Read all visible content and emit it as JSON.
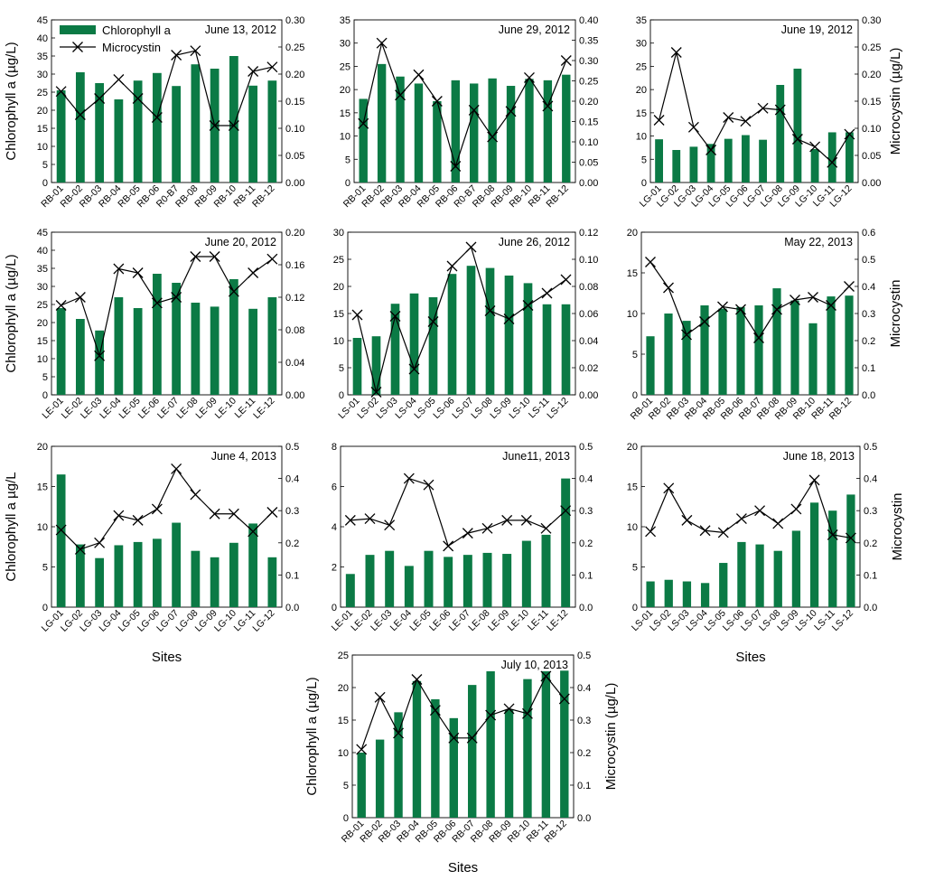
{
  "figure": {
    "legend": {
      "bar_label": "Chlorophyll a",
      "line_label": "Microcystin",
      "bar_color": "#0b7a45",
      "line_color": "#000000"
    },
    "left_ylabel_plain": "Chlorophyll a (µg/L)",
    "left_ylabel_row3": "Chlorophyll a µg/L",
    "right_ylabel": "Microcystin (µg/L)",
    "right_ylabel_short": "Microcystin",
    "xlabel": "Sites"
  },
  "chart_data": [
    {
      "type": "bar",
      "title": "June 13, 2012",
      "categories": [
        "RB-01",
        "RB-02",
        "RB-03",
        "RB-04",
        "RB-05",
        "RB-06",
        "R0-B7",
        "RB-08",
        "RB-09",
        "RB-10",
        "RB-11",
        "RB-12"
      ],
      "series": [
        {
          "name": "Chlorophyll a",
          "axis": "left",
          "values": [
            25.5,
            30.5,
            27.5,
            23,
            28.2,
            30.3,
            26.7,
            32.7,
            31.5,
            35,
            26.8,
            28.2
          ]
        },
        {
          "name": "Microcystin",
          "axis": "right",
          "type": "line",
          "values": [
            0.168,
            0.125,
            0.155,
            0.19,
            0.155,
            0.12,
            0.235,
            0.243,
            0.105,
            0.105,
            0.205,
            0.213
          ]
        }
      ],
      "ylim": [
        0,
        45
      ],
      "yticks": [
        0,
        5,
        10,
        15,
        20,
        25,
        30,
        35,
        40,
        45
      ],
      "y2lim": [
        0,
        0.3
      ],
      "y2ticks": [
        0,
        0.05,
        0.1,
        0.15,
        0.2,
        0.25,
        0.3
      ],
      "y2decimals": 2
    },
    {
      "type": "bar",
      "title": "June 29,  2012",
      "categories": [
        "RB-01",
        "RB-02",
        "RB-03",
        "RB-04",
        "RB-05",
        "RB-06",
        "R0-B7",
        "RB-08",
        "RB-09",
        "RB-10",
        "RB-11",
        "RB-12"
      ],
      "series": [
        {
          "name": "Chlorophyll a",
          "axis": "left",
          "values": [
            18,
            25.5,
            22.8,
            21.3,
            17.5,
            22,
            21.3,
            22.4,
            20.8,
            22.3,
            22,
            23.2
          ]
        },
        {
          "name": "Microcystin",
          "axis": "right",
          "type": "line",
          "values": [
            0.145,
            0.343,
            0.215,
            0.265,
            0.2,
            0.04,
            0.178,
            0.112,
            0.175,
            0.258,
            0.188,
            0.3
          ]
        }
      ],
      "ylim": [
        0,
        35
      ],
      "yticks": [
        0,
        5,
        10,
        15,
        20,
        25,
        30,
        35
      ],
      "y2lim": [
        0,
        0.4
      ],
      "y2ticks": [
        0,
        0.05,
        0.1,
        0.15,
        0.2,
        0.25,
        0.3,
        0.35,
        0.4
      ],
      "y2decimals": 2
    },
    {
      "type": "bar",
      "title": "June 19, 2012",
      "categories": [
        "LG-01",
        "LG-02",
        "LG-03",
        "LG-04",
        "LG-05",
        "LG-06",
        "LG-07",
        "LG-08",
        "LG-09",
        "LG-10",
        "LG-11",
        "LG-12"
      ],
      "series": [
        {
          "name": "Chlorophyll a",
          "axis": "left",
          "values": [
            9.3,
            7,
            7.7,
            8.3,
            9.4,
            10.2,
            9.2,
            21,
            24.5,
            7.2,
            10.8,
            10.8
          ]
        },
        {
          "name": "Microcystin",
          "axis": "right",
          "type": "line",
          "values": [
            0.115,
            0.24,
            0.102,
            0.06,
            0.12,
            0.113,
            0.137,
            0.134,
            0.08,
            0.066,
            0.037,
            0.089
          ]
        }
      ],
      "ylim": [
        0,
        35
      ],
      "yticks": [
        0,
        5,
        10,
        15,
        20,
        25,
        30,
        35
      ],
      "y2lim": [
        0,
        0.3
      ],
      "y2ticks": [
        0,
        0.05,
        0.1,
        0.15,
        0.2,
        0.25,
        0.3
      ],
      "y2decimals": 2
    },
    {
      "type": "bar",
      "title": "June 20, 2012",
      "categories": [
        "LE-01",
        "LE-02",
        "LE-03",
        "LE-04",
        "LE-05",
        "LE-06",
        "LE-07",
        "LE-08",
        "LE-09",
        "LE-10",
        "LE-11",
        "LE-12"
      ],
      "series": [
        {
          "name": "Chlorophyll a",
          "axis": "left",
          "values": [
            24,
            21,
            17.8,
            27,
            24,
            33.5,
            31,
            25.5,
            24.4,
            32,
            23.8,
            27
          ]
        },
        {
          "name": "Microcystin",
          "axis": "right",
          "type": "line",
          "values": [
            0.11,
            0.12,
            0.048,
            0.155,
            0.15,
            0.113,
            0.12,
            0.17,
            0.17,
            0.127,
            0.15,
            0.167
          ]
        }
      ],
      "ylim": [
        0,
        45
      ],
      "yticks": [
        0,
        5,
        10,
        15,
        20,
        25,
        30,
        35,
        40,
        45
      ],
      "y2lim": [
        0,
        0.2
      ],
      "y2ticks": [
        0,
        0.04,
        0.08,
        0.12,
        0.16,
        0.2
      ],
      "y2decimals": 2
    },
    {
      "type": "bar",
      "title": "June 26, 2012",
      "categories": [
        "LS-01",
        "LS-02",
        "LS-03",
        "LS-04",
        "LS-05",
        "LS-06",
        "LS-07",
        "LS-08",
        "LS-09",
        "LS-10",
        "LS-11",
        "LS-12"
      ],
      "series": [
        {
          "name": "Chlorophyll a",
          "axis": "left",
          "values": [
            10.5,
            10.8,
            16.8,
            18.7,
            18,
            22.3,
            23.8,
            23.4,
            22,
            20.6,
            16.7,
            16.7
          ]
        },
        {
          "name": "Microcystin",
          "axis": "right",
          "type": "line",
          "values": [
            0.059,
            0.002,
            0.058,
            0.019,
            0.054,
            0.095,
            0.109,
            0.062,
            0.056,
            0.066,
            0.075,
            0.085
          ]
        }
      ],
      "ylim": [
        0,
        30
      ],
      "yticks": [
        0,
        5,
        10,
        15,
        20,
        25,
        30
      ],
      "y2lim": [
        0,
        0.12
      ],
      "y2ticks": [
        0,
        0.02,
        0.04,
        0.06,
        0.08,
        0.1,
        0.12
      ],
      "y2decimals": 2
    },
    {
      "type": "bar",
      "title": "May 22, 2013",
      "categories": [
        "RB-01",
        "RB-02",
        "RB-03",
        "RB-04",
        "RB-05",
        "RB-06",
        "RB-07",
        "RB-08",
        "RB-09",
        "RB-10",
        "RB-11",
        "RB-12"
      ],
      "series": [
        {
          "name": "Chlorophyll a",
          "axis": "left",
          "values": [
            7.2,
            10,
            9.1,
            11,
            10.6,
            10.8,
            11,
            13.1,
            11.6,
            8.8,
            12.1,
            12.2
          ]
        },
        {
          "name": "Microcystin",
          "axis": "right",
          "type": "line",
          "values": [
            0.49,
            0.395,
            0.222,
            0.27,
            0.325,
            0.315,
            0.21,
            0.315,
            0.35,
            0.36,
            0.33,
            0.4
          ]
        }
      ],
      "ylim": [
        0,
        20
      ],
      "yticks": [
        0,
        5,
        10,
        15,
        20
      ],
      "y2lim": [
        0,
        0.6
      ],
      "y2ticks": [
        0,
        0.1,
        0.2,
        0.3,
        0.4,
        0.5,
        0.6
      ],
      "y2decimals": 1
    },
    {
      "type": "bar",
      "title": "June 4, 2013",
      "categories": [
        "LG-01",
        "LG-02",
        "LG-03",
        "LG-04",
        "LG-05",
        "LG-06",
        "LG-07",
        "LG-08",
        "LG-09",
        "LG-10",
        "LG-11",
        "LG-12"
      ],
      "series": [
        {
          "name": "Chlorophyll a",
          "axis": "left",
          "values": [
            16.5,
            7.8,
            6.1,
            7.7,
            8.1,
            8.5,
            10.5,
            7,
            6.2,
            8,
            10.4,
            6.2
          ]
        },
        {
          "name": "Microcystin",
          "axis": "right",
          "type": "line",
          "values": [
            0.24,
            0.18,
            0.2,
            0.285,
            0.27,
            0.305,
            0.43,
            0.35,
            0.29,
            0.29,
            0.235,
            0.295
          ]
        }
      ],
      "ylim": [
        0,
        20
      ],
      "yticks": [
        0,
        5,
        10,
        15,
        20
      ],
      "y2lim": [
        0,
        0.5
      ],
      "y2ticks": [
        0,
        0.1,
        0.2,
        0.3,
        0.4,
        0.5
      ],
      "y2decimals": 1
    },
    {
      "type": "bar",
      "title": "June11, 2013",
      "categories": [
        "LE-01",
        "LE-02",
        "LE-03",
        "LE-04",
        "LE-05",
        "LE-06",
        "LE-07",
        "LE-08",
        "LE-09",
        "LE-10",
        "LE-11",
        "LE-12"
      ],
      "series": [
        {
          "name": "Chlorophyll a",
          "axis": "left",
          "values": [
            1.65,
            2.6,
            2.8,
            2.05,
            2.8,
            2.5,
            2.6,
            2.7,
            2.65,
            3.3,
            3.6,
            6.4
          ]
        },
        {
          "name": "Microcystin",
          "axis": "right",
          "type": "line",
          "values": [
            0.27,
            0.275,
            0.255,
            0.4,
            0.38,
            0.19,
            0.23,
            0.245,
            0.27,
            0.27,
            0.245,
            0.3
          ]
        }
      ],
      "ylim": [
        0,
        8
      ],
      "yticks": [
        0,
        2,
        4,
        6,
        8
      ],
      "y2lim": [
        0,
        0.5
      ],
      "y2ticks": [
        0,
        0.1,
        0.2,
        0.3,
        0.4,
        0.5
      ],
      "y2decimals": 1
    },
    {
      "type": "bar",
      "title": "June 18, 2013",
      "categories": [
        "LS-01",
        "LS-02",
        "LS-03",
        "LS-04",
        "LS-05",
        "LS-06",
        "LS-07",
        "LS-08",
        "LS-09",
        "LS-10",
        "LS-11",
        "LS-12"
      ],
      "series": [
        {
          "name": "Chlorophyll a",
          "axis": "left",
          "values": [
            3.2,
            3.4,
            3.2,
            3,
            5.5,
            8.1,
            7.8,
            7,
            9.5,
            13,
            12,
            14
          ]
        },
        {
          "name": "Microcystin",
          "axis": "right",
          "type": "line",
          "values": [
            0.235,
            0.37,
            0.27,
            0.238,
            0.232,
            0.275,
            0.3,
            0.26,
            0.305,
            0.395,
            0.225,
            0.215
          ]
        }
      ],
      "ylim": [
        0,
        20
      ],
      "yticks": [
        0,
        5,
        10,
        15,
        20
      ],
      "y2lim": [
        0,
        0.5
      ],
      "y2ticks": [
        0,
        0.1,
        0.2,
        0.3,
        0.4,
        0.5
      ],
      "y2decimals": 1
    },
    {
      "type": "bar",
      "title": "July 10, 2013",
      "categories": [
        "RB-01",
        "RB-02",
        "RB-03",
        "RB-04",
        "RB-05",
        "RB-06",
        "RB-07",
        "RB-08",
        "RB-09",
        "RB-10",
        "RB-11",
        "RB-12"
      ],
      "series": [
        {
          "name": "Chlorophyll a",
          "axis": "left",
          "values": [
            10,
            12,
            16.2,
            21,
            18.2,
            15.3,
            20.4,
            22.5,
            16.6,
            21.3,
            22.5,
            22.6
          ]
        },
        {
          "name": "Microcystin",
          "axis": "right",
          "type": "line",
          "values": [
            0.21,
            0.37,
            0.26,
            0.425,
            0.33,
            0.245,
            0.245,
            0.315,
            0.335,
            0.32,
            0.435,
            0.365
          ]
        }
      ],
      "ylim": [
        0,
        25
      ],
      "yticks": [
        0,
        5,
        10,
        15,
        20,
        25
      ],
      "y2lim": [
        0,
        0.5
      ],
      "y2ticks": [
        0,
        0.1,
        0.2,
        0.3,
        0.4,
        0.5
      ],
      "y2decimals": 1
    }
  ]
}
